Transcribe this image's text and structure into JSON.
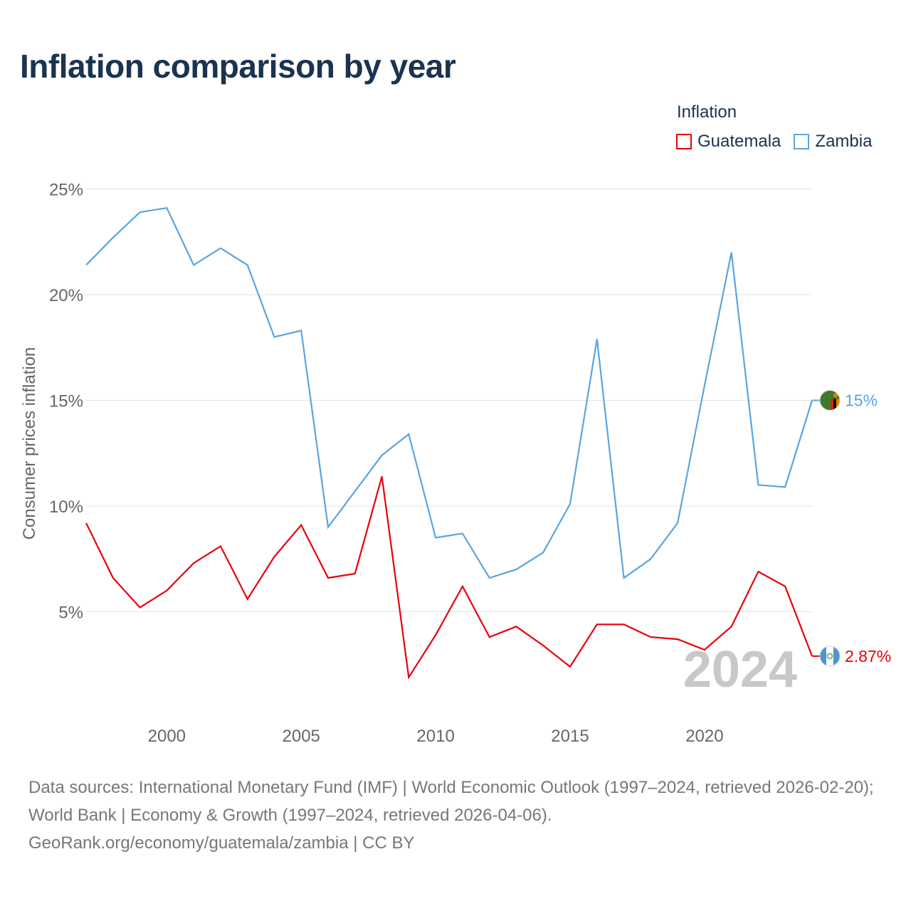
{
  "chart_data": {
    "type": "line",
    "title": "Inflation comparison by year",
    "legend_title": "Inflation",
    "ylabel": "Consumer prices inflation",
    "xlabel": "",
    "xlim": [
      1997,
      2024
    ],
    "ylim": [
      0,
      25
    ],
    "x_ticks": [
      2000,
      2005,
      2010,
      2015,
      2020
    ],
    "y_ticks": [
      {
        "value": 5,
        "label": "5%"
      },
      {
        "value": 10,
        "label": "10%"
      },
      {
        "value": 15,
        "label": "15%"
      },
      {
        "value": 20,
        "label": "20%"
      },
      {
        "value": 25,
        "label": "25%"
      }
    ],
    "x": [
      1997,
      1998,
      1999,
      2000,
      2001,
      2002,
      2003,
      2004,
      2005,
      2006,
      2007,
      2008,
      2009,
      2010,
      2011,
      2012,
      2013,
      2014,
      2015,
      2016,
      2017,
      2018,
      2019,
      2020,
      2021,
      2022,
      2023,
      2024
    ],
    "series": [
      {
        "name": "Guatemala",
        "color": "#e8000b",
        "end_label": "2.87%",
        "flag": "guatemala-flag",
        "values": [
          9.2,
          6.6,
          5.2,
          6.0,
          7.3,
          8.1,
          5.6,
          7.6,
          9.1,
          6.6,
          6.8,
          11.4,
          1.9,
          3.9,
          6.2,
          3.8,
          4.3,
          3.4,
          2.4,
          4.4,
          4.4,
          3.8,
          3.7,
          3.2,
          4.3,
          6.9,
          6.2,
          2.9
        ]
      },
      {
        "name": "Zambia",
        "color": "#5ba4e0",
        "end_label": "15%",
        "flag": "zambia-flag",
        "values": [
          21.4,
          22.7,
          23.9,
          24.1,
          21.4,
          22.2,
          21.4,
          18.0,
          18.3,
          9.0,
          10.7,
          12.4,
          13.4,
          8.5,
          8.7,
          6.6,
          7.0,
          7.8,
          10.1,
          17.9,
          6.6,
          7.5,
          9.2,
          15.7,
          22.0,
          11.0,
          10.9,
          15.0
        ]
      }
    ],
    "year_watermark": "2024",
    "grid": true,
    "legend_position": "top-right"
  },
  "footer": {
    "sources": "Data sources: International Monetary Fund (IMF) | World Economic Outlook (1997–2024, retrieved 2026-02-20); World Bank | Economy & Growth (1997–2024, retrieved 2026-04-06).",
    "credit": "GeoRank.org/economy/guatemala/zambia | CC BY"
  }
}
